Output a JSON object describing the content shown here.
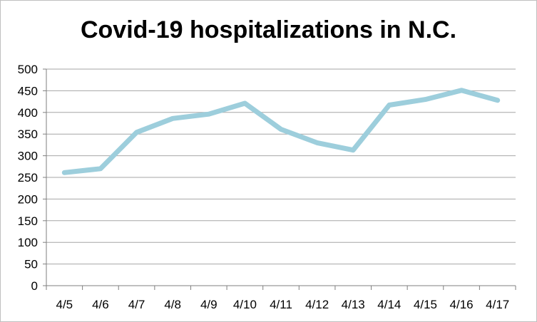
{
  "chart_data": {
    "type": "line",
    "title": "Covid-19 hospitalizations in N.C.",
    "xlabel": "",
    "ylabel": "",
    "categories": [
      "4/5",
      "4/6",
      "4/7",
      "4/8",
      "4/9",
      "4/10",
      "4/11",
      "4/12",
      "4/13",
      "4/14",
      "4/15",
      "4/16",
      "4/17"
    ],
    "series": [
      {
        "values": [
          261,
          270,
          354,
          386,
          396,
          421,
          361,
          330,
          313,
          417,
          430,
          451,
          428
        ]
      }
    ],
    "ylim": [
      0,
      500
    ],
    "yticks": [
      "0",
      "50",
      "100",
      "150",
      "200",
      "250",
      "300",
      "350",
      "400",
      "450",
      "500"
    ],
    "grid": true,
    "legend": "none",
    "colors": {
      "line": "#9dcedc",
      "grid": "#a6a6a6",
      "axis": "#7f7f7f"
    }
  }
}
